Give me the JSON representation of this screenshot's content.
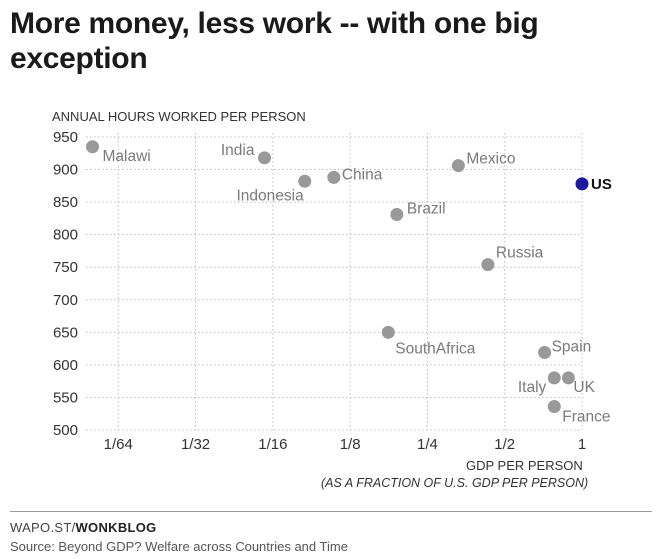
{
  "chart_data": {
    "type": "scatter",
    "title": "More money, less work -- with one big exception",
    "ylabel": "ANNUAL HOURS WORKED PER PERSON",
    "xlabel": "GDP PER PERSON",
    "xlabel_sub": "(AS A FRACTION OF U.S. GDP PER PERSON)",
    "xscale": "log2",
    "xlim": [
      0.0117,
      1
    ],
    "ylim": [
      500,
      950
    ],
    "xticks": [
      {
        "value": 0.015625,
        "label": "1/64"
      },
      {
        "value": 0.03125,
        "label": "1/32"
      },
      {
        "value": 0.0625,
        "label": "1/16"
      },
      {
        "value": 0.125,
        "label": "1/8"
      },
      {
        "value": 0.25,
        "label": "1/4"
      },
      {
        "value": 0.5,
        "label": "1/2"
      },
      {
        "value": 1,
        "label": "1"
      }
    ],
    "yticks": [
      500,
      550,
      600,
      650,
      700,
      750,
      800,
      850,
      900,
      950
    ],
    "grid": true,
    "colors": {
      "default": "#999999",
      "highlight": "#1a1aa0"
    },
    "points": [
      {
        "name": "Malawi",
        "x": 0.0124,
        "y": 935
      },
      {
        "name": "India",
        "x": 0.058,
        "y": 918
      },
      {
        "name": "Indonesia",
        "x": 0.0832,
        "y": 882
      },
      {
        "name": "China",
        "x": 0.108,
        "y": 888
      },
      {
        "name": "Mexico",
        "x": 0.33,
        "y": 906
      },
      {
        "name": "Brazil",
        "x": 0.19,
        "y": 831
      },
      {
        "name": "US",
        "x": 1,
        "y": 878
      },
      {
        "name": "Russia",
        "x": 0.43,
        "y": 754
      },
      {
        "name": "SouthAfrica",
        "x": 0.176,
        "y": 650
      },
      {
        "name": "Spain",
        "x": 0.715,
        "y": 619
      },
      {
        "name": "Italy",
        "x": 0.78,
        "y": 580
      },
      {
        "name": "UK",
        "x": 0.885,
        "y": 580
      },
      {
        "name": "France",
        "x": 0.78,
        "y": 536
      }
    ]
  },
  "footer": {
    "brand_prefix": "WAPO.ST/",
    "brand_bold": "WONKBLOG",
    "source": "Source: Beyond GDP? Welfare across Countries and Time"
  }
}
